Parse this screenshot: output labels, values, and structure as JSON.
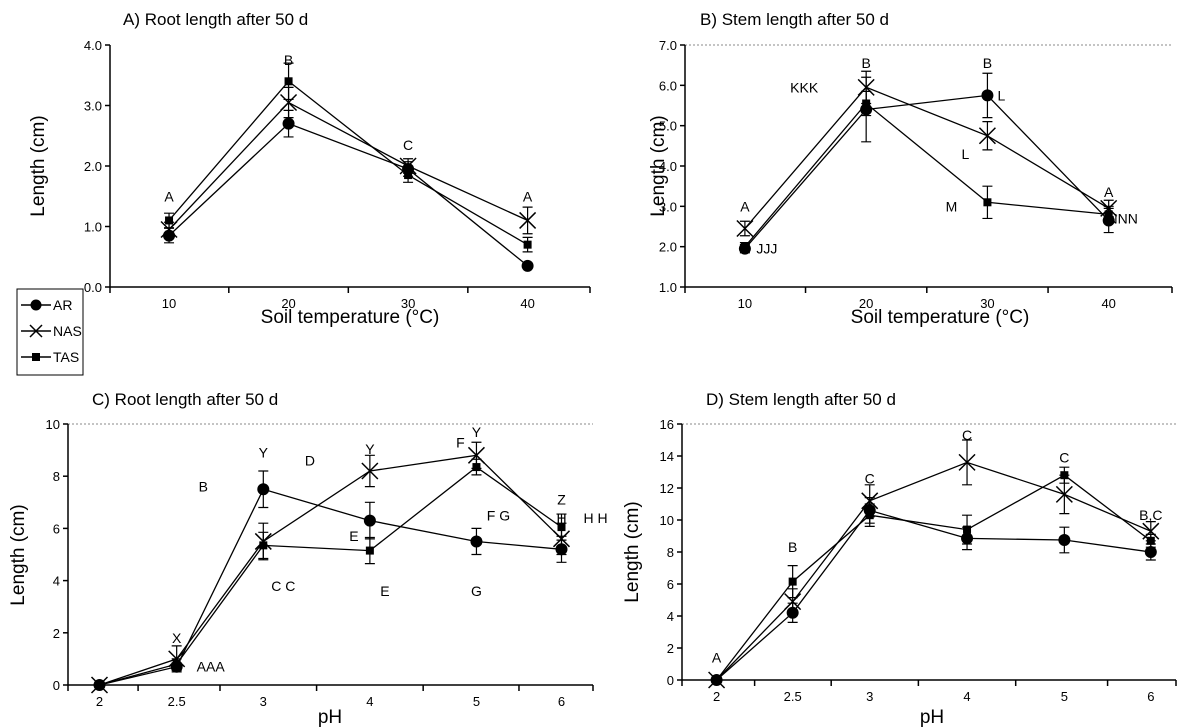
{
  "legend": [
    {
      "name": "AR",
      "marker": "circle"
    },
    {
      "name": "NAS",
      "marker": "x"
    },
    {
      "name": "TAS",
      "marker": "square"
    }
  ],
  "chart_data": [
    {
      "id": "A",
      "type": "line",
      "title": "A) Root length after 50 d",
      "xlabel": "Soil temperature (°C)",
      "ylabel": "Length (cm)",
      "categories": [
        "10",
        "20",
        "30",
        "40"
      ],
      "ylim": [
        0,
        4
      ],
      "yticks": [
        "0.0",
        "1.0",
        "2.0",
        "3.0",
        "4.0"
      ],
      "grid": false,
      "series": [
        {
          "name": "AR",
          "marker": "circle",
          "values": [
            0.85,
            2.7,
            1.95,
            0.35
          ],
          "err": [
            0.12,
            0.22,
            0.12,
            0.03
          ]
        },
        {
          "name": "NAS",
          "marker": "x",
          "values": [
            0.95,
            3.05,
            2.0,
            1.1
          ],
          "err": [
            0.12,
            0.25,
            0.12,
            0.22
          ]
        },
        {
          "name": "TAS",
          "marker": "square",
          "values": [
            1.1,
            3.4,
            1.85,
            0.7
          ],
          "err": [
            0.12,
            0.3,
            0.12,
            0.12
          ]
        }
      ],
      "annotations": [
        {
          "text": "A",
          "x": "10",
          "y": 1.5
        },
        {
          "text": "B",
          "x": "20",
          "y": 3.75
        },
        {
          "text": "C",
          "x": "30",
          "y": 2.35
        },
        {
          "text": "A",
          "x": "40",
          "y": 1.5
        }
      ]
    },
    {
      "id": "B",
      "type": "line",
      "title": "B) Stem length after 50 d",
      "xlabel": "Soil temperature (°C)",
      "ylabel": "Length (cm)",
      "categories": [
        "10",
        "20",
        "30",
        "40"
      ],
      "ylim": [
        1,
        7
      ],
      "yticks": [
        "1.0",
        "2.0",
        "3.0",
        "4.0",
        "5.0",
        "6.0",
        "7.0"
      ],
      "grid": true,
      "series": [
        {
          "name": "AR",
          "marker": "circle",
          "values": [
            1.95,
            5.4,
            5.75,
            2.65
          ],
          "err": [
            0.1,
            0.8,
            0.55,
            0.3
          ]
        },
        {
          "name": "NAS",
          "marker": "x",
          "values": [
            2.45,
            5.95,
            4.75,
            2.95
          ],
          "err": [
            0.18,
            0.4,
            0.35,
            0.2
          ]
        },
        {
          "name": "TAS",
          "marker": "square",
          "values": [
            2.0,
            5.55,
            3.1,
            2.8
          ],
          "err": [
            0.1,
            0.3,
            0.4,
            0.2
          ]
        }
      ],
      "annotations": [
        {
          "text": "A",
          "x": "10",
          "y": 3.0
        },
        {
          "text": "JJJ",
          "x": "10",
          "y": 1.95,
          "dx": 22
        },
        {
          "text": "B",
          "x": "20",
          "y": 6.55
        },
        {
          "text": "KKK",
          "x": "20",
          "y": 5.95,
          "dx": -62
        },
        {
          "text": "B",
          "x": "30",
          "y": 6.55
        },
        {
          "text": "L",
          "x": "30",
          "y": 5.75,
          "dx": 14
        },
        {
          "text": "L",
          "x": "30",
          "y": 4.3,
          "dx": -22
        },
        {
          "text": "M",
          "x": "30",
          "y": 3.0,
          "dx": -36
        },
        {
          "text": "A",
          "x": "40",
          "y": 3.35
        },
        {
          "text": "NNN",
          "x": "40",
          "y": 2.7,
          "dx": 14
        }
      ]
    },
    {
      "id": "C",
      "type": "line",
      "title": "C) Root length after 50 d",
      "xlabel": "pH",
      "ylabel": "Length (cm)",
      "categories": [
        "2",
        "2.5",
        "3",
        "4",
        "5",
        "6"
      ],
      "ylim": [
        0,
        10
      ],
      "yticks": [
        "0",
        "2",
        "4",
        "6",
        "8",
        "10"
      ],
      "grid": true,
      "series": [
        {
          "name": "AR",
          "marker": "circle",
          "values": [
            0.0,
            0.7,
            7.5,
            6.3,
            5.5,
            5.2
          ],
          "err": [
            0,
            0.15,
            0.7,
            0.7,
            0.5,
            0.5
          ]
        },
        {
          "name": "NAS",
          "marker": "x",
          "values": [
            0.0,
            1.0,
            5.5,
            8.2,
            8.8,
            5.6
          ],
          "err": [
            0,
            0.5,
            0.7,
            0.6,
            0.5,
            0.6
          ]
        },
        {
          "name": "TAS",
          "marker": "square",
          "values": [
            0.0,
            0.8,
            5.35,
            5.15,
            8.35,
            6.05
          ],
          "err": [
            0,
            0.2,
            0.5,
            0.5,
            0.3,
            0.5
          ]
        }
      ],
      "annotations": [
        {
          "text": "X",
          "x": "2.5",
          "y": 1.8
        },
        {
          "text": "AAA",
          "x": "2.5",
          "y": 0.7,
          "dx": 34
        },
        {
          "text": "Y",
          "x": "3",
          "y": 8.9
        },
        {
          "text": "B",
          "x": "3",
          "y": 7.6,
          "dx": -60
        },
        {
          "text": "C C",
          "x": "3",
          "y": 3.8,
          "dx": 20
        },
        {
          "text": "D",
          "x": "4",
          "y": 8.6,
          "dx": -60
        },
        {
          "text": "Y",
          "x": "4",
          "y": 9.05
        },
        {
          "text": "E",
          "x": "4",
          "y": 5.7,
          "dx": -16
        },
        {
          "text": "E",
          "x": "4",
          "y": 3.6,
          "dx": 15
        },
        {
          "text": "F",
          "x": "5",
          "y": 9.3,
          "dx": -16
        },
        {
          "text": "Y",
          "x": "5",
          "y": 9.7
        },
        {
          "text": "F G",
          "x": "5",
          "y": 6.5,
          "dx": 22
        },
        {
          "text": "G",
          "x": "5",
          "y": 3.6
        },
        {
          "text": "Z",
          "x": "6",
          "y": 7.1
        },
        {
          "text": "H",
          "x": "6",
          "y": 6.4
        },
        {
          "text": "H H",
          "x": "6",
          "y": 6.4,
          "dx": 34
        }
      ]
    },
    {
      "id": "D",
      "type": "line",
      "title": "D) Stem length after 50 d",
      "xlabel": "pH",
      "ylabel": "Length (cm)",
      "categories": [
        "2",
        "2.5",
        "3",
        "4",
        "5",
        "6"
      ],
      "ylim": [
        0,
        16
      ],
      "yticks": [
        "0",
        "2",
        "4",
        "6",
        "8",
        "10",
        "12",
        "14",
        "16"
      ],
      "grid": true,
      "series": [
        {
          "name": "AR",
          "marker": "circle",
          "values": [
            0.0,
            4.2,
            10.6,
            8.85,
            8.75,
            8.0
          ],
          "err": [
            0,
            0.6,
            0.8,
            0.7,
            0.8,
            0.5
          ]
        },
        {
          "name": "NAS",
          "marker": "x",
          "values": [
            0.0,
            4.9,
            11.2,
            13.6,
            11.6,
            9.3
          ],
          "err": [
            0,
            0.8,
            1.0,
            1.4,
            1.2,
            0.6
          ]
        },
        {
          "name": "TAS",
          "marker": "square",
          "values": [
            0.0,
            6.15,
            10.3,
            9.4,
            12.8,
            8.7
          ],
          "err": [
            0,
            1.0,
            0.7,
            0.9,
            0.5,
            0.4
          ]
        }
      ],
      "annotations": [
        {
          "text": "A",
          "x": "2",
          "y": 1.4
        },
        {
          "text": "B",
          "x": "2.5",
          "y": 8.3
        },
        {
          "text": "C",
          "x": "3",
          "y": 12.6
        },
        {
          "text": "C",
          "x": "4",
          "y": 15.3
        },
        {
          "text": "C",
          "x": "5",
          "y": 13.9
        },
        {
          "text": "B,C",
          "x": "6",
          "y": 10.3
        }
      ]
    }
  ]
}
